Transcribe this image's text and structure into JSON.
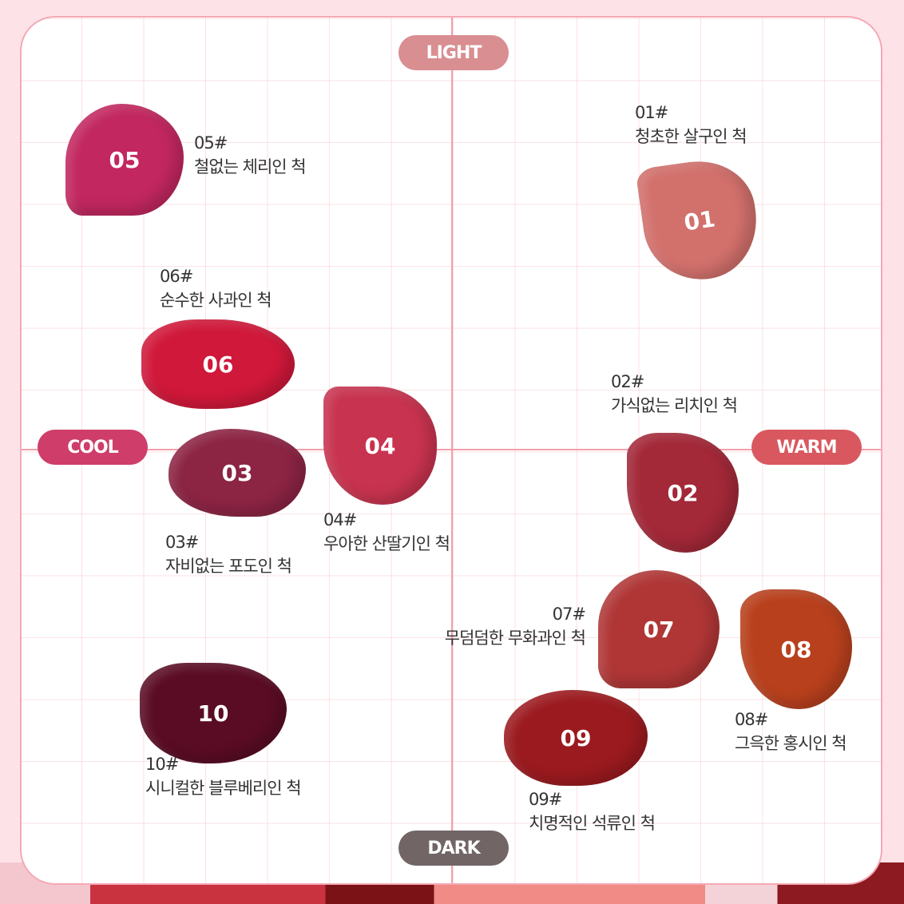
{
  "axes": {
    "top": "LIGHT",
    "bottom": "DARK",
    "left": "COOL",
    "right": "WARM"
  },
  "axis_colors": {
    "light": "#d98e92",
    "dark": "#716565",
    "cool": "#cf3d6a",
    "warm": "#d95860"
  },
  "shades": [
    {
      "number": "01",
      "code": "01#",
      "name": "청초한 살구인 척",
      "color": "#d2706c"
    },
    {
      "number": "02",
      "code": "02#",
      "name": "가식없는 리치인 척",
      "color": "#a32838"
    },
    {
      "number": "03",
      "code": "03#",
      "name": "자비없는 포도인 척",
      "color": "#8c2444"
    },
    {
      "number": "04",
      "code": "04#",
      "name": "우아한 산딸기인 척",
      "color": "#c8334f"
    },
    {
      "number": "05",
      "code": "05#",
      "name": "철없는 체리인 척",
      "color": "#c2275f"
    },
    {
      "number": "06",
      "code": "06#",
      "name": "순수한 사과인 척",
      "color": "#d0183a"
    },
    {
      "number": "07",
      "code": "07#",
      "name": "무덤덤한 무화과인 척",
      "color": "#b03636"
    },
    {
      "number": "08",
      "code": "08#",
      "name": "그윽한 홍시인 척",
      "color": "#b8401d"
    },
    {
      "number": "09",
      "code": "09#",
      "name": "치명적인 석류인 척",
      "color": "#9b1a1f"
    },
    {
      "number": "10",
      "code": "10#",
      "name": "시니컬한 블루베리인 척",
      "color": "#5a0c24"
    }
  ]
}
